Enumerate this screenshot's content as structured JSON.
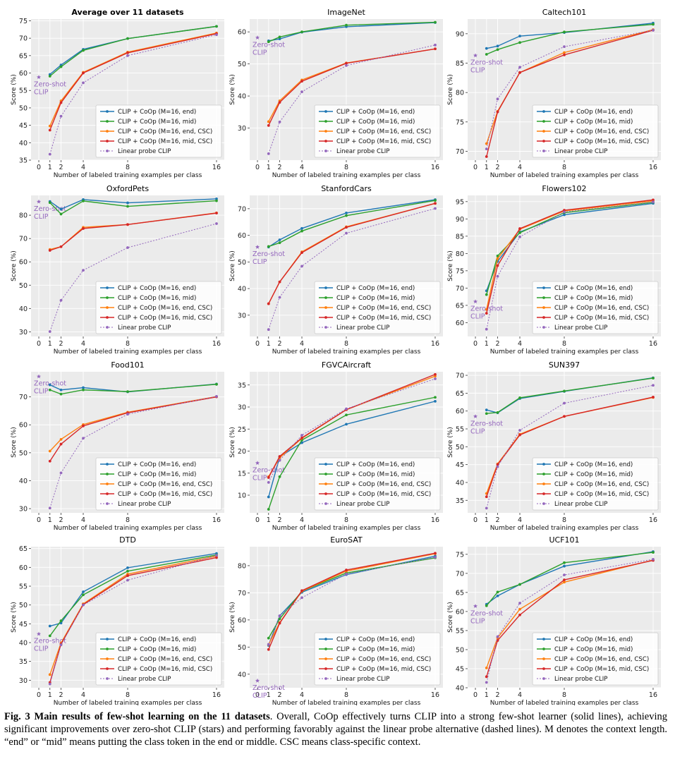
{
  "figure": {
    "legend_labels": [
      "CLIP + CoOp (M=16, end)",
      "CLIP + CoOp (M=16, mid)",
      "CLIP + CoOp (M=16, end, CSC)",
      "CLIP + CoOp (M=16, mid, CSC)",
      "Linear probe CLIP"
    ],
    "zero_shot_label": "Zero-shot CLIP",
    "series_colors": [
      "#1f77b4",
      "#2ca02c",
      "#ff7f0e",
      "#d62728",
      "#9467bd"
    ]
  },
  "chart_data": [
    {
      "type": "line",
      "title": "Average over 11 datasets",
      "title_bold": true,
      "xlabel": "Number of labeled training examples per class",
      "ylabel": "Score (%)",
      "x": [
        1,
        2,
        4,
        8,
        16
      ],
      "xticks": [
        0,
        1,
        2,
        4,
        8,
        16
      ],
      "xlim": [
        -0.7,
        16.7
      ],
      "ylim": [
        35,
        75.5
      ],
      "yticks": [
        35,
        40,
        45,
        50,
        55,
        60,
        65,
        70,
        75
      ],
      "zero_shot": 58.8,
      "series": [
        {
          "name": "CLIP + CoOp (M=16, end)",
          "values": [
            59.6,
            62.3,
            66.8,
            69.9,
            73.4
          ]
        },
        {
          "name": "CLIP + CoOp (M=16, mid)",
          "values": [
            59.1,
            61.8,
            66.5,
            69.9,
            73.4
          ]
        },
        {
          "name": "CLIP + CoOp (M=16, end, CSC)",
          "values": [
            44.8,
            52.0,
            60.2,
            66.0,
            71.5
          ]
        },
        {
          "name": "CLIP + CoOp (M=16, mid, CSC)",
          "values": [
            43.6,
            51.5,
            60.0,
            65.8,
            71.3
          ]
        },
        {
          "name": "Linear probe CLIP",
          "values": [
            36.7,
            47.6,
            57.2,
            65.0,
            71.0
          ]
        }
      ]
    },
    {
      "type": "line",
      "title": "ImageNet",
      "xlabel": "Number of labeled training examples per class",
      "ylabel": "Score (%)",
      "x": [
        1,
        2,
        4,
        8,
        16
      ],
      "xticks": [
        0,
        1,
        2,
        4,
        8,
        16
      ],
      "xlim": [
        -0.7,
        16.7
      ],
      "ylim": [
        20,
        64
      ],
      "yticks": [
        30,
        40,
        50,
        60
      ],
      "zero_shot": 58.2,
      "series": [
        {
          "name": "CLIP + CoOp (M=16, end)",
          "values": [
            57.2,
            57.8,
            59.9,
            61.6,
            62.9
          ]
        },
        {
          "name": "CLIP + CoOp (M=16, mid)",
          "values": [
            56.9,
            58.4,
            60.0,
            62.1,
            63.0
          ]
        },
        {
          "name": "CLIP + CoOp (M=16, end, CSC)",
          "values": [
            32.0,
            38.5,
            45.0,
            50.3,
            54.7
          ]
        },
        {
          "name": "CLIP + CoOp (M=16, mid, CSC)",
          "values": [
            30.8,
            38.0,
            44.6,
            50.2,
            54.7
          ]
        },
        {
          "name": "Linear probe CLIP",
          "values": [
            22.0,
            31.9,
            41.3,
            49.5,
            55.9
          ]
        }
      ]
    },
    {
      "type": "line",
      "title": "Caltech101",
      "xlabel": "Number of labeled training examples per class",
      "ylabel": "Score (%)",
      "x": [
        1,
        2,
        4,
        8,
        16
      ],
      "xticks": [
        0,
        1,
        2,
        4,
        8,
        16
      ],
      "xlim": [
        -0.7,
        16.7
      ],
      "ylim": [
        68.5,
        92.5
      ],
      "yticks": [
        70,
        75,
        80,
        85,
        90
      ],
      "zero_shot": 86.3,
      "series": [
        {
          "name": "CLIP + CoOp (M=16, end)",
          "values": [
            87.5,
            87.9,
            89.6,
            90.2,
            91.8
          ]
        },
        {
          "name": "CLIP + CoOp (M=16, mid)",
          "values": [
            86.5,
            87.3,
            88.5,
            90.3,
            91.6
          ]
        },
        {
          "name": "CLIP + CoOp (M=16, end, CSC)",
          "values": [
            71.3,
            76.8,
            83.4,
            86.8,
            90.7
          ]
        },
        {
          "name": "CLIP + CoOp (M=16, mid, CSC)",
          "values": [
            69.1,
            76.7,
            83.4,
            86.4,
            90.6
          ]
        },
        {
          "name": "Linear probe CLIP",
          "values": [
            70.4,
            78.9,
            84.3,
            87.8,
            90.6
          ]
        }
      ]
    },
    {
      "type": "line",
      "title": "OxfordPets",
      "xlabel": "Number of labeled training examples per class",
      "ylabel": "Score (%)",
      "x": [
        1,
        2,
        4,
        8,
        16
      ],
      "xticks": [
        0,
        1,
        2,
        4,
        8,
        16
      ],
      "xlim": [
        -0.7,
        16.7
      ],
      "ylim": [
        28,
        88.5
      ],
      "yticks": [
        30,
        40,
        50,
        60,
        70,
        80
      ],
      "zero_shot": 85.8,
      "series": [
        {
          "name": "CLIP + CoOp (M=16, end)",
          "values": [
            85.9,
            82.6,
            86.7,
            85.3,
            87.0
          ]
        },
        {
          "name": "CLIP + CoOp (M=16, mid)",
          "values": [
            85.4,
            80.5,
            86.1,
            83.8,
            86.2
          ]
        },
        {
          "name": "CLIP + CoOp (M=16, end, CSC)",
          "values": [
            65.3,
            66.5,
            74.8,
            76.0,
            81.0
          ]
        },
        {
          "name": "CLIP + CoOp (M=16, mid, CSC)",
          "values": [
            64.9,
            66.5,
            74.3,
            76.0,
            80.9
          ]
        },
        {
          "name": "Linear probe CLIP",
          "values": [
            30.1,
            43.5,
            56.4,
            66.1,
            76.4
          ]
        }
      ]
    },
    {
      "type": "line",
      "title": "StanfordCars",
      "xlabel": "Number of labeled training examples per class",
      "ylabel": "Score (%)",
      "x": [
        1,
        2,
        4,
        8,
        16
      ],
      "xticks": [
        0,
        1,
        2,
        4,
        8,
        16
      ],
      "xlim": [
        -0.7,
        16.7
      ],
      "ylim": [
        22,
        75
      ],
      "yticks": [
        30,
        40,
        50,
        60,
        70
      ],
      "zero_shot": 55.6,
      "series": [
        {
          "name": "CLIP + CoOp (M=16, end)",
          "values": [
            55.6,
            58.3,
            62.6,
            68.4,
            73.4
          ]
        },
        {
          "name": "CLIP + CoOp (M=16, mid)",
          "values": [
            55.8,
            57.2,
            61.6,
            67.4,
            73.1
          ]
        },
        {
          "name": "CLIP + CoOp (M=16, end, CSC)",
          "values": [
            34.3,
            42.5,
            53.8,
            63.2,
            72.0
          ]
        },
        {
          "name": "CLIP + CoOp (M=16, mid, CSC)",
          "values": [
            34.3,
            42.5,
            53.5,
            63.0,
            72.0
          ]
        },
        {
          "name": "Linear probe CLIP",
          "values": [
            24.6,
            36.7,
            48.4,
            60.8,
            70.1
          ]
        }
      ]
    },
    {
      "type": "line",
      "title": "Flowers102",
      "xlabel": "Number of labeled training examples per class",
      "ylabel": "Score (%)",
      "x": [
        1,
        2,
        4,
        8,
        16
      ],
      "xticks": [
        0,
        1,
        2,
        4,
        8,
        16
      ],
      "xlim": [
        -0.7,
        16.7
      ],
      "ylim": [
        56,
        96.8
      ],
      "yticks": [
        60,
        65,
        70,
        75,
        80,
        85,
        90,
        95
      ],
      "zero_shot": 66.1,
      "series": [
        {
          "name": "CLIP + CoOp (M=16, end)",
          "values": [
            69.2,
            77.7,
            86.2,
            91.2,
            94.5
          ]
        },
        {
          "name": "CLIP + CoOp (M=16, mid)",
          "values": [
            68.1,
            79.3,
            86.0,
            91.8,
            94.8
          ]
        },
        {
          "name": "CLIP + CoOp (M=16, end, CSC)",
          "values": [
            63.8,
            78.5,
            87.0,
            92.3,
            95.2
          ]
        },
        {
          "name": "CLIP + CoOp (M=16, mid, CSC)",
          "values": [
            62.7,
            76.5,
            87.2,
            92.5,
            95.5
          ]
        },
        {
          "name": "Linear probe CLIP",
          "values": [
            58.1,
            73.4,
            84.8,
            92.0,
            94.9
          ]
        }
      ]
    },
    {
      "type": "line",
      "title": "Food101",
      "xlabel": "Number of labeled training examples per class",
      "ylabel": "Score (%)",
      "x": [
        1,
        2,
        4,
        8,
        16
      ],
      "xticks": [
        0,
        1,
        2,
        4,
        8,
        16
      ],
      "xlim": [
        -0.7,
        16.7
      ],
      "ylim": [
        28.5,
        79
      ],
      "yticks": [
        30,
        40,
        50,
        60,
        70
      ],
      "zero_shot": 77.3,
      "series": [
        {
          "name": "CLIP + CoOp (M=16, end)",
          "values": [
            74.3,
            72.5,
            73.3,
            71.8,
            74.6
          ]
        },
        {
          "name": "CLIP + CoOp (M=16, mid)",
          "values": [
            72.5,
            71.0,
            72.5,
            71.9,
            74.5
          ]
        },
        {
          "name": "CLIP + CoOp (M=16, end, CSC)",
          "values": [
            50.6,
            54.8,
            60.1,
            64.5,
            70.1
          ]
        },
        {
          "name": "CLIP + CoOp (M=16, mid, CSC)",
          "values": [
            47.0,
            53.1,
            59.6,
            64.3,
            70.0
          ]
        },
        {
          "name": "Linear probe CLIP",
          "values": [
            30.2,
            42.8,
            55.2,
            63.8,
            70.2
          ]
        }
      ]
    },
    {
      "type": "line",
      "title": "FGVCAircraft",
      "xlabel": "Number of labeled training examples per class",
      "ylabel": "Score (%)",
      "x": [
        1,
        2,
        4,
        8,
        16
      ],
      "xticks": [
        0,
        1,
        2,
        4,
        8,
        16
      ],
      "xlim": [
        -0.7,
        16.7
      ],
      "ylim": [
        6,
        38
      ],
      "yticks": [
        10,
        15,
        20,
        25,
        30,
        35
      ],
      "zero_shot": 17.3,
      "series": [
        {
          "name": "CLIP + CoOp (M=16, end)",
          "values": [
            9.6,
            18.7,
            21.9,
            26.1,
            31.3
          ]
        },
        {
          "name": "CLIP + CoOp (M=16, mid)",
          "values": [
            6.8,
            14.2,
            22.5,
            28.2,
            32.2
          ]
        },
        {
          "name": "CLIP + CoOp (M=16, end, CSC)",
          "values": [
            14.2,
            18.5,
            22.9,
            29.4,
            37.0
          ]
        },
        {
          "name": "CLIP + CoOp (M=16, mid, CSC)",
          "values": [
            14.0,
            18.8,
            23.0,
            29.4,
            37.4
          ]
        },
        {
          "name": "Linear probe CLIP",
          "values": [
            12.9,
            17.9,
            23.6,
            29.6,
            36.4
          ]
        }
      ]
    },
    {
      "type": "line",
      "title": "SUN397",
      "xlabel": "Number of labeled training examples per class",
      "ylabel": "Score (%)",
      "x": [
        1,
        2,
        4,
        8,
        16
      ],
      "xticks": [
        0,
        1,
        2,
        4,
        8,
        16
      ],
      "xlim": [
        -0.7,
        16.7
      ],
      "ylim": [
        31.5,
        71
      ],
      "yticks": [
        35,
        40,
        45,
        50,
        55,
        60,
        65,
        70
      ],
      "zero_shot": 58.5,
      "series": [
        {
          "name": "CLIP + CoOp (M=16, end)",
          "values": [
            60.3,
            59.5,
            63.5,
            65.5,
            69.3
          ]
        },
        {
          "name": "CLIP + CoOp (M=16, mid)",
          "values": [
            59.3,
            59.6,
            63.7,
            65.6,
            69.2
          ]
        },
        {
          "name": "CLIP + CoOp (M=16, end, CSC)",
          "values": [
            36.9,
            45.2,
            53.5,
            58.5,
            63.8
          ]
        },
        {
          "name": "CLIP + CoOp (M=16, mid, CSC)",
          "values": [
            36.0,
            45.0,
            53.3,
            58.5,
            63.9
          ]
        },
        {
          "name": "Linear probe CLIP",
          "values": [
            32.8,
            44.4,
            54.6,
            62.2,
            67.2
          ]
        }
      ]
    },
    {
      "type": "line",
      "title": "DTD",
      "xlabel": "Number of labeled training examples per class",
      "ylabel": "Score (%)",
      "x": [
        1,
        2,
        4,
        8,
        16
      ],
      "xticks": [
        0,
        1,
        2,
        4,
        8,
        16
      ],
      "xlim": [
        -0.7,
        16.7
      ],
      "ylim": [
        28,
        65.5
      ],
      "yticks": [
        30,
        35,
        40,
        45,
        50,
        55,
        60,
        65
      ],
      "zero_shot": 42.3,
      "series": [
        {
          "name": "CLIP + CoOp (M=16, end)",
          "values": [
            44.4,
            45.2,
            53.5,
            59.9,
            63.7
          ]
        },
        {
          "name": "CLIP + CoOp (M=16, mid)",
          "values": [
            41.8,
            45.8,
            52.7,
            59.0,
            63.3
          ]
        },
        {
          "name": "CLIP + CoOp (M=16, end, CSC)",
          "values": [
            31.5,
            39.9,
            50.3,
            58.2,
            63.0
          ]
        },
        {
          "name": "CLIP + CoOp (M=16, mid, CSC)",
          "values": [
            29.4,
            39.6,
            50.1,
            57.8,
            62.6
          ]
        },
        {
          "name": "Linear probe CLIP",
          "values": [
            29.0,
            39.4,
            50.0,
            56.6,
            63.2
          ]
        }
      ]
    },
    {
      "type": "line",
      "title": "EuroSAT",
      "xlabel": "Number of labeled training examples per class",
      "ylabel": "Score (%)",
      "x": [
        1,
        2,
        4,
        8,
        16
      ],
      "xticks": [
        0,
        1,
        2,
        4,
        8,
        16
      ],
      "xlim": [
        -0.7,
        16.7
      ],
      "ylim": [
        35,
        87
      ],
      "yticks": [
        40,
        50,
        60,
        70,
        80
      ],
      "zero_shot": 37.6,
      "series": [
        {
          "name": "CLIP + CoOp (M=16, end)",
          "values": [
            50.6,
            61.5,
            70.2,
            76.7,
            83.5
          ]
        },
        {
          "name": "CLIP + CoOp (M=16, mid)",
          "values": [
            53.3,
            60.4,
            70.6,
            77.3,
            82.9
          ]
        },
        {
          "name": "CLIP + CoOp (M=16, end, CSC)",
          "values": [
            50.9,
            59.0,
            70.6,
            78.0,
            84.4
          ]
        },
        {
          "name": "CLIP + CoOp (M=16, mid, CSC)",
          "values": [
            49.1,
            58.8,
            70.8,
            78.4,
            84.6
          ]
        },
        {
          "name": "Linear probe CLIP",
          "values": [
            51.0,
            61.5,
            68.2,
            76.9,
            83.1
          ]
        }
      ]
    },
    {
      "type": "line",
      "title": "UCF101",
      "xlabel": "Number of labeled training examples per class",
      "ylabel": "Score (%)",
      "x": [
        1,
        2,
        4,
        8,
        16
      ],
      "xticks": [
        0,
        1,
        2,
        4,
        8,
        16
      ],
      "xlim": [
        -0.7,
        16.7
      ],
      "ylim": [
        40,
        77
      ],
      "yticks": [
        40,
        45,
        50,
        55,
        60,
        65,
        70,
        75
      ],
      "zero_shot": 61.4,
      "series": [
        {
          "name": "CLIP + CoOp (M=16, end)",
          "values": [
            61.9,
            64.1,
            67.1,
            71.9,
            75.7
          ]
        },
        {
          "name": "CLIP + CoOp (M=16, mid)",
          "values": [
            61.5,
            65.1,
            67.1,
            72.8,
            75.5
          ]
        },
        {
          "name": "CLIP + CoOp (M=16, end, CSC)",
          "values": [
            45.2,
            53.1,
            60.6,
            67.7,
            73.5
          ]
        },
        {
          "name": "CLIP + CoOp (M=16, mid, CSC)",
          "values": [
            42.9,
            52.4,
            59.1,
            68.3,
            73.4
          ]
        },
        {
          "name": "Linear probe CLIP",
          "values": [
            41.4,
            53.4,
            62.2,
            69.6,
            73.7
          ]
        }
      ]
    }
  ],
  "caption": {
    "label": "Fig. 3",
    "title": "Main results of few-shot learning on the 11 datasets",
    "body": ". Overall, CoOp effectively turns CLIP into a strong few-shot learner (solid lines), achieving significant improvements over zero-shot CLIP (stars) and performing favorably against the linear probe alternative (dashed lines). M denotes the context length. “end” or “mid” means putting the class token in the end or middle. CSC means class-specific context."
  }
}
